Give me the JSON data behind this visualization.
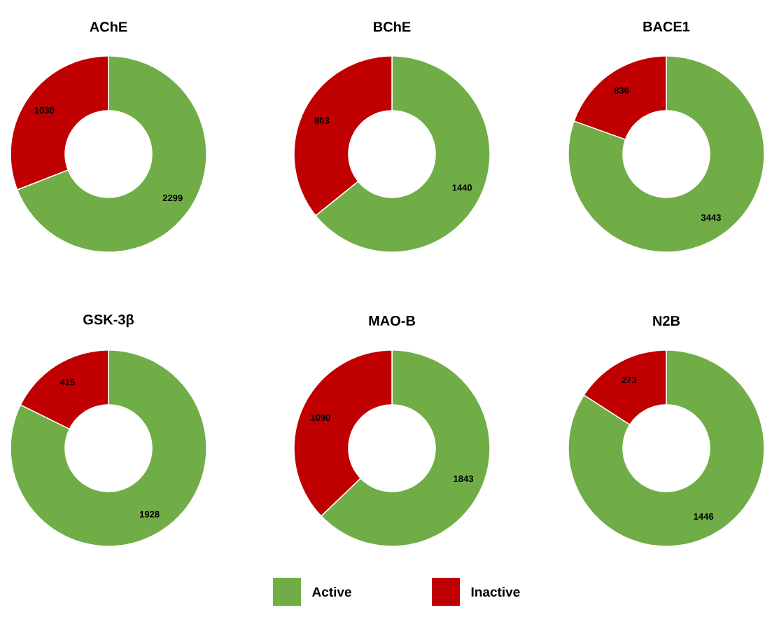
{
  "chart_data": [
    {
      "type": "donut",
      "title": "AChE",
      "categories": [
        null,
        null
      ],
      "values": [
        2299,
        1030
      ],
      "colors": [
        "#70ad47",
        "#c00000"
      ],
      "data_labels": true
    },
    {
      "type": "donut",
      "title": "BChE",
      "categories": [
        null,
        null
      ],
      "values": [
        1440,
        803
      ],
      "colors": [
        "#70ad47",
        "#c00000"
      ],
      "data_labels": true
    },
    {
      "type": "donut",
      "title": "BACE1",
      "categories": [
        null,
        null
      ],
      "values": [
        3443,
        836
      ],
      "colors": [
        "#70ad47",
        "#c00000"
      ],
      "data_labels": true
    },
    {
      "type": "donut",
      "title": "GSK-3β",
      "categories": [
        null,
        null
      ],
      "values": [
        1928,
        415
      ],
      "colors": [
        "#70ad47",
        "#c00000"
      ],
      "data_labels": true
    },
    {
      "type": "donut",
      "title": "MAO-B",
      "categories": [
        "Active",
        "Inactive"
      ],
      "values": [
        1843,
        1090
      ],
      "colors": [
        "#70ad47",
        "#c00000"
      ],
      "data_labels": true,
      "legend": "bottom"
    },
    {
      "type": "donut",
      "title": "N2B",
      "categories": [
        null,
        null
      ],
      "values": [
        1446,
        273
      ],
      "colors": [
        "#70ad47",
        "#c00000"
      ],
      "data_labels": true
    }
  ]
}
